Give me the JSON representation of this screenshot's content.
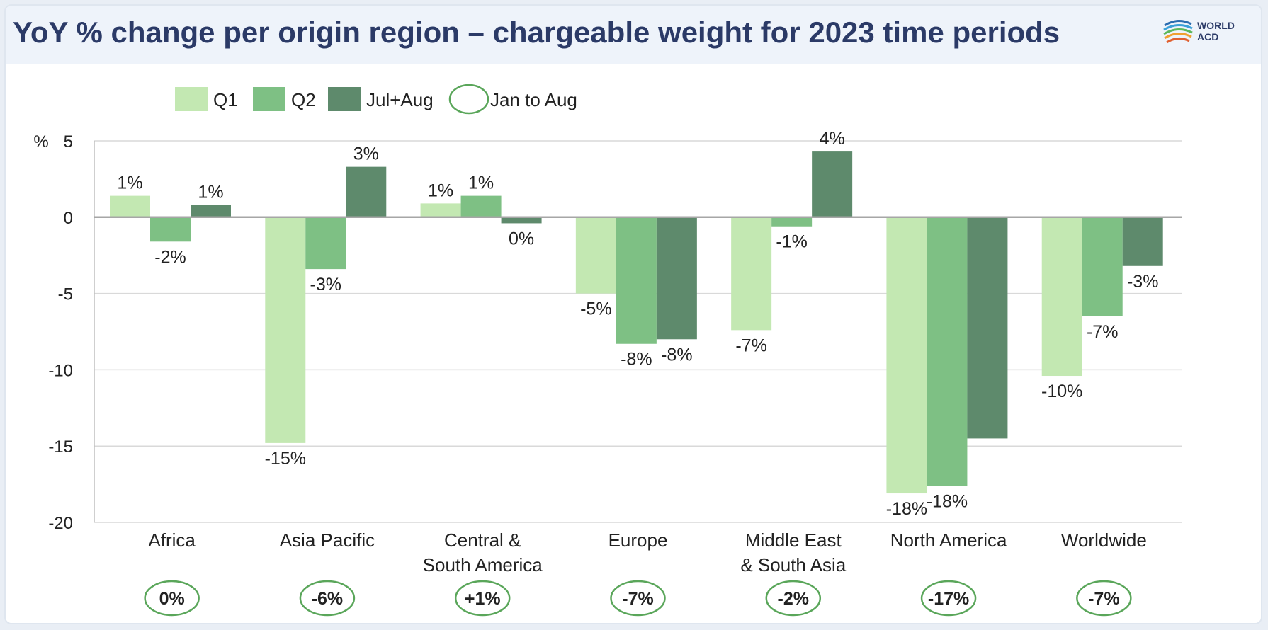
{
  "title": "YoY % change per origin region – chargeable weight for 2023 time periods",
  "logo": {
    "line1": "WORLD",
    "line2": "ACD",
    "icon": "worldacd-logo-icon"
  },
  "colors": {
    "q1": "#c3e8b2",
    "q2": "#7ec084",
    "julaug": "#5e8a6c",
    "oval": "#5aa65a",
    "title": "#2b3a67",
    "grid": "#d9d9d9",
    "zero": "#a6a6a6"
  },
  "chart_data": {
    "type": "bar",
    "title": "YoY % change per origin region – chargeable weight for 2023 time periods",
    "ylabel": "%",
    "ylim": [
      -20,
      5
    ],
    "yticks": [
      5,
      0,
      -5,
      -10,
      -15,
      -20
    ],
    "grid": true,
    "legend_position": "top",
    "categories": [
      [
        "Africa"
      ],
      [
        "Asia Pacific"
      ],
      [
        "Central &",
        "South America"
      ],
      [
        "Europe"
      ],
      [
        "Middle East",
        "& South Asia"
      ],
      [
        "North America"
      ],
      [
        "Worldwide"
      ]
    ],
    "series": [
      {
        "name": "Q1",
        "values": [
          1.4,
          -14.8,
          0.9,
          -5.0,
          -7.4,
          -18.1,
          -10.4
        ],
        "labels": [
          "1%",
          "-15%",
          "1%",
          "-5%",
          "-7%",
          "-18%",
          "-10%"
        ]
      },
      {
        "name": "Q2",
        "values": [
          -1.6,
          -3.4,
          1.4,
          -8.3,
          -0.6,
          -17.6,
          -6.5
        ],
        "labels": [
          "-2%",
          "-3%",
          "1%",
          "-8%",
          "-1%",
          "-18%",
          "-7%"
        ]
      },
      {
        "name": "Jul+Aug",
        "values": [
          0.8,
          3.3,
          -0.4,
          -8.0,
          4.3,
          -14.5,
          -3.2
        ],
        "labels": [
          "1%",
          "3%",
          "0%",
          "-8%",
          "4%",
          "",
          "-3%"
        ]
      }
    ],
    "jan_to_aug": {
      "name": "Jan to Aug",
      "labels": [
        "0%",
        "-6%",
        "+1%",
        "-7%",
        "-2%",
        "-17%",
        "-7%"
      ]
    }
  }
}
